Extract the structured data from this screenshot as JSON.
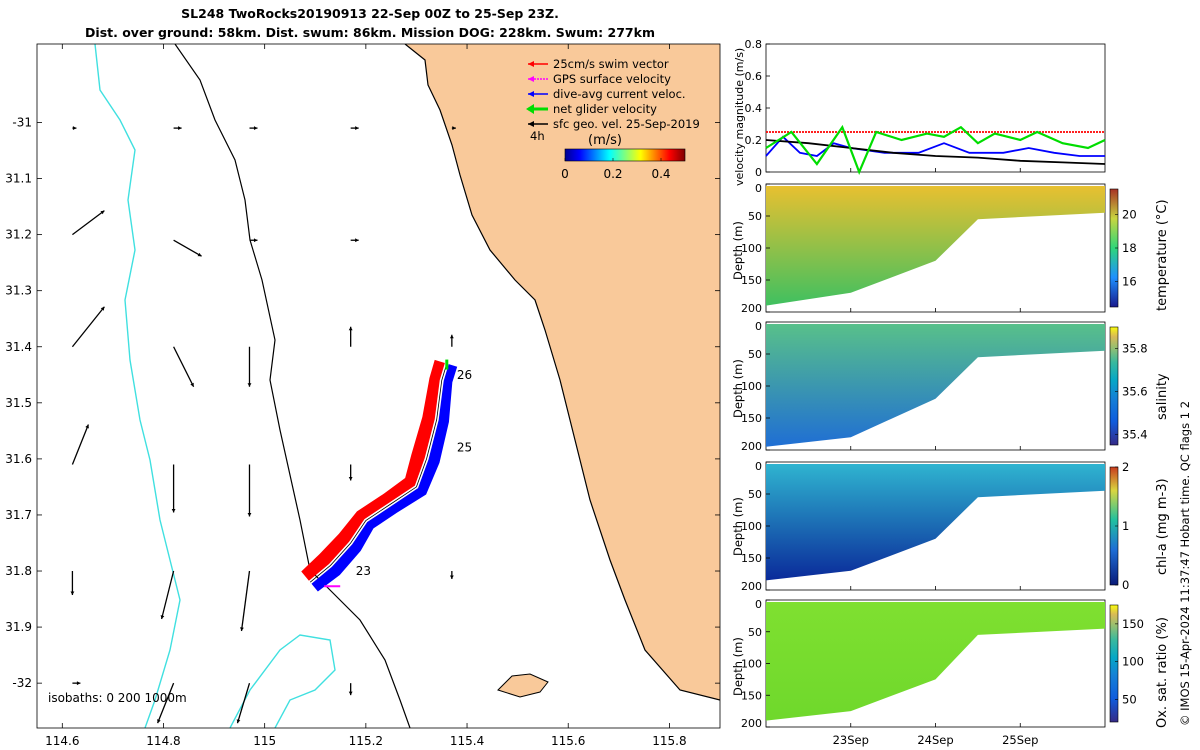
{
  "header": {
    "title_line1": "SL248 TwoRocks20190913 22-Sep 00Z to 25-Sep 23Z.",
    "title_line2": "Dist. over ground: 58km. Dist. swum: 86km. Mission DOG: 228km. Swum: 277km"
  },
  "footer_note": "© IMOS 15-Apr-2024 11:37:47 Hobart time. QC flags 1  2",
  "colors": {
    "land": "#f9c99a",
    "coast": "#000000",
    "isobath_0": "#40e0e0",
    "isobath_200": "#000000",
    "swim": "#ff0000",
    "current": "#0000ff",
    "net": "#00dd00",
    "gps": "#ff00ff"
  },
  "chart_data": [
    {
      "type": "map",
      "x_ticks": [
        "114.6",
        "114.8",
        "115",
        "115.2",
        "115.4",
        "115.6",
        "115.8"
      ],
      "xlim": [
        114.55,
        115.9
      ],
      "y_ticks": [
        "-31",
        "31.1",
        "31.2",
        "31.3",
        "31.4",
        "31.5",
        "31.6",
        "31.7",
        "31.8",
        "31.9",
        "-32"
      ],
      "ylim": [
        -32.08,
        -30.86
      ],
      "legend": [
        "25cm/s swim vector",
        "GPS surface velocity",
        "dive-avg current veloc.",
        "net glider velocity",
        "sfc geo. vel. 25-Sep-2019"
      ],
      "legend_interval": "4h",
      "colorbar": {
        "label": "(m/s)",
        "ticks": [
          "0",
          "0.2",
          "0.4"
        ],
        "range": [
          0,
          0.5
        ]
      },
      "isobath_label": "isobaths: 0   200  1000m",
      "day_labels": [
        {
          "text": "23",
          "lon": 115.18,
          "lat": -31.8
        },
        {
          "text": "25",
          "lon": 115.38,
          "lat": -31.58
        },
        {
          "text": "26",
          "lon": 115.38,
          "lat": -31.45
        }
      ],
      "track": [
        {
          "lon": 115.09,
          "lat": -31.82
        },
        {
          "lon": 115.13,
          "lat": -31.79
        },
        {
          "lon": 115.17,
          "lat": -31.75
        },
        {
          "lon": 115.2,
          "lat": -31.71
        },
        {
          "lon": 115.25,
          "lat": -31.68
        },
        {
          "lon": 115.3,
          "lat": -31.65
        },
        {
          "lon": 115.32,
          "lat": -31.6
        },
        {
          "lon": 115.34,
          "lat": -31.53
        },
        {
          "lon": 115.35,
          "lat": -31.46
        },
        {
          "lon": 115.36,
          "lat": -31.43
        }
      ],
      "geo_vectors": [
        {
          "lon": 114.62,
          "lat": -31.01,
          "u": 0.01,
          "v": 0.0
        },
        {
          "lon": 114.82,
          "lat": -31.01,
          "u": 0.02,
          "v": 0.0
        },
        {
          "lon": 114.97,
          "lat": -31.01,
          "u": 0.02,
          "v": 0.0
        },
        {
          "lon": 115.17,
          "lat": -31.01,
          "u": 0.02,
          "v": 0.0
        },
        {
          "lon": 115.37,
          "lat": -31.01,
          "u": 0.01,
          "v": 0.0
        },
        {
          "lon": 114.62,
          "lat": -31.2,
          "u": 0.08,
          "v": 0.06
        },
        {
          "lon": 114.82,
          "lat": -31.21,
          "u": 0.07,
          "v": -0.04
        },
        {
          "lon": 114.97,
          "lat": -31.21,
          "u": 0.02,
          "v": 0.0
        },
        {
          "lon": 115.17,
          "lat": -31.21,
          "u": 0.02,
          "v": 0.0
        },
        {
          "lon": 114.62,
          "lat": -31.4,
          "u": 0.08,
          "v": 0.1
        },
        {
          "lon": 114.82,
          "lat": -31.4,
          "u": 0.05,
          "v": -0.1
        },
        {
          "lon": 114.97,
          "lat": -31.4,
          "u": 0.0,
          "v": -0.1
        },
        {
          "lon": 115.17,
          "lat": -31.4,
          "u": 0.0,
          "v": 0.05
        },
        {
          "lon": 115.37,
          "lat": -31.4,
          "u": 0.0,
          "v": 0.03
        },
        {
          "lon": 114.62,
          "lat": -31.61,
          "u": 0.04,
          "v": 0.1
        },
        {
          "lon": 114.82,
          "lat": -31.61,
          "u": 0.0,
          "v": -0.12
        },
        {
          "lon": 114.97,
          "lat": -31.61,
          "u": 0.0,
          "v": -0.13
        },
        {
          "lon": 115.17,
          "lat": -31.61,
          "u": 0.0,
          "v": -0.04
        },
        {
          "lon": 114.62,
          "lat": -31.8,
          "u": 0.0,
          "v": -0.06
        },
        {
          "lon": 114.82,
          "lat": -31.8,
          "u": -0.03,
          "v": -0.12
        },
        {
          "lon": 114.97,
          "lat": -31.8,
          "u": -0.02,
          "v": -0.15
        },
        {
          "lon": 115.37,
          "lat": -31.8,
          "u": 0.0,
          "v": -0.02
        },
        {
          "lon": 114.62,
          "lat": -32.0,
          "u": 0.02,
          "v": 0.0
        },
        {
          "lon": 114.82,
          "lat": -32.0,
          "u": -0.04,
          "v": -0.1
        },
        {
          "lon": 114.97,
          "lat": -32.0,
          "u": -0.03,
          "v": -0.1
        },
        {
          "lon": 115.17,
          "lat": -32.0,
          "u": 0.0,
          "v": -0.03
        }
      ]
    },
    {
      "type": "line",
      "ylabel": "velocity magnitude (m/s)",
      "ylim": [
        0,
        0.8
      ],
      "y_ticks": [
        "0",
        "0.2",
        "0.4",
        "0.6",
        "0.8"
      ],
      "x_days": [
        0,
        4
      ],
      "series": [
        {
          "color": "#ff0000",
          "values": [
            [
              0,
              0.25
            ],
            [
              4,
              0.25
            ]
          ]
        },
        {
          "color": "#0000ff",
          "values": [
            [
              0,
              0.1
            ],
            [
              0.2,
              0.22
            ],
            [
              0.4,
              0.12
            ],
            [
              0.6,
              0.1
            ],
            [
              0.8,
              0.18
            ],
            [
              1.0,
              0.15
            ],
            [
              1.4,
              0.12
            ],
            [
              1.8,
              0.12
            ],
            [
              2.1,
              0.18
            ],
            [
              2.4,
              0.12
            ],
            [
              2.8,
              0.12
            ],
            [
              3.1,
              0.15
            ],
            [
              3.4,
              0.12
            ],
            [
              3.7,
              0.1
            ],
            [
              4.0,
              0.1
            ]
          ]
        },
        {
          "color": "#000000",
          "values": [
            [
              0,
              0.2
            ],
            [
              0.5,
              0.18
            ],
            [
              1.0,
              0.15
            ],
            [
              1.5,
              0.12
            ],
            [
              2.0,
              0.1
            ],
            [
              2.5,
              0.09
            ],
            [
              3.0,
              0.07
            ],
            [
              3.5,
              0.06
            ],
            [
              4.0,
              0.05
            ]
          ]
        },
        {
          "color": "#00dd00",
          "values": [
            [
              0,
              0.15
            ],
            [
              0.3,
              0.25
            ],
            [
              0.6,
              0.05
            ],
            [
              0.9,
              0.28
            ],
            [
              1.1,
              0.0
            ],
            [
              1.3,
              0.25
            ],
            [
              1.6,
              0.2
            ],
            [
              1.9,
              0.24
            ],
            [
              2.1,
              0.22
            ],
            [
              2.3,
              0.28
            ],
            [
              2.5,
              0.18
            ],
            [
              2.7,
              0.24
            ],
            [
              3.0,
              0.2
            ],
            [
              3.2,
              0.25
            ],
            [
              3.5,
              0.18
            ],
            [
              3.8,
              0.15
            ],
            [
              4.0,
              0.2
            ]
          ]
        }
      ]
    },
    {
      "type": "heatmap",
      "ylabel": "Depth (m)",
      "variable": "temperature (°C)",
      "colorbar_ticks": [
        "16",
        "18",
        "20"
      ],
      "crange": [
        14.5,
        21.5
      ],
      "profile": [
        {
          "day": 0.0,
          "temp_surface": 18.5,
          "temp_bottom": 16.0,
          "max_depth": 190
        },
        {
          "day": 1.0,
          "temp_surface": 18.8,
          "temp_bottom": 16.2,
          "max_depth": 170
        },
        {
          "day": 2.0,
          "temp_surface": 19.5,
          "temp_bottom": 17.0,
          "max_depth": 120
        },
        {
          "day": 2.5,
          "temp_surface": 20.0,
          "temp_bottom": 18.5,
          "max_depth": 55
        },
        {
          "day": 4.0,
          "temp_surface": 19.5,
          "temp_bottom": 18.8,
          "max_depth": 45
        }
      ]
    },
    {
      "type": "heatmap",
      "ylabel": "Depth (m)",
      "variable": "salinity",
      "colorbar_ticks": [
        "35.4",
        "35.6",
        "35.8"
      ],
      "crange": [
        35.35,
        35.9
      ],
      "profile": [
        {
          "day": 0.0,
          "salt_surface": 35.55,
          "salt_bottom": 35.68,
          "max_depth": 195
        },
        {
          "day": 1.0,
          "salt_surface": 35.55,
          "salt_bottom": 35.66,
          "max_depth": 180
        },
        {
          "day": 2.0,
          "salt_surface": 35.56,
          "salt_bottom": 35.65,
          "max_depth": 120
        },
        {
          "day": 2.5,
          "salt_surface": 35.58,
          "salt_bottom": 35.6,
          "max_depth": 55
        },
        {
          "day": 4.0,
          "salt_surface": 35.58,
          "salt_bottom": 35.6,
          "max_depth": 45
        }
      ]
    },
    {
      "type": "heatmap",
      "ylabel": "Depth (m)",
      "variable": "chl-a (mg m-3)",
      "colorbar_ticks": [
        "0",
        "1",
        "2"
      ],
      "crange": [
        0,
        2
      ],
      "profile": [
        {
          "day": 0.0,
          "chl_surface": 0.8,
          "chl_bottom": 0.2,
          "max_depth": 185
        },
        {
          "day": 1.0,
          "chl_surface": 0.8,
          "chl_bottom": 0.3,
          "max_depth": 170
        },
        {
          "day": 2.0,
          "chl_surface": 0.7,
          "chl_bottom": 0.4,
          "max_depth": 120
        },
        {
          "day": 2.5,
          "chl_surface": 0.6,
          "chl_bottom": 0.7,
          "max_depth": 55
        },
        {
          "day": 4.0,
          "chl_surface": 0.6,
          "chl_bottom": 0.9,
          "max_depth": 45
        }
      ]
    },
    {
      "type": "heatmap",
      "ylabel": "Depth (m)",
      "variable": "Ox. sat. ratio (%)",
      "colorbar_ticks": [
        "50",
        "100",
        "150"
      ],
      "crange": [
        20,
        175
      ],
      "x_ticks": [
        "23Sep",
        "24Sep",
        "25Sep"
      ],
      "profile": [
        {
          "day": 0.0,
          "ox_surface": 112,
          "ox_bottom": 108,
          "max_depth": 190
        },
        {
          "day": 1.0,
          "ox_surface": 112,
          "ox_bottom": 108,
          "max_depth": 175
        },
        {
          "day": 2.0,
          "ox_surface": 110,
          "ox_bottom": 108,
          "max_depth": 125
        },
        {
          "day": 2.5,
          "ox_surface": 110,
          "ox_bottom": 110,
          "max_depth": 55
        },
        {
          "day": 4.0,
          "ox_surface": 112,
          "ox_bottom": 112,
          "max_depth": 45
        }
      ]
    }
  ]
}
